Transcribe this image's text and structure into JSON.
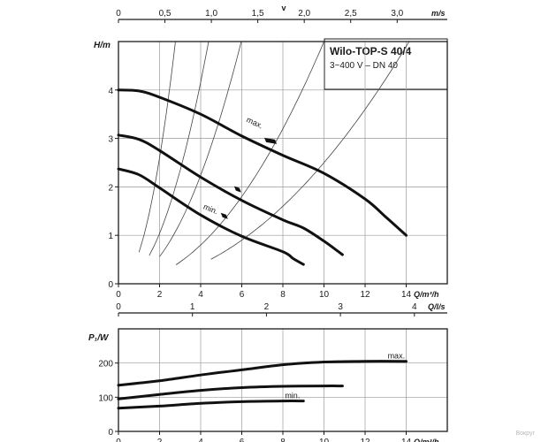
{
  "header": {
    "title": "Wilo-TOP-S 40/4",
    "subtitle": "3~400 V – DN 40"
  },
  "watermark": "Вокруг",
  "chart_data": [
    {
      "type": "line",
      "id": "head",
      "ylabel": "H/m",
      "xlabel": "Q/m³/h",
      "xlim": [
        0,
        16
      ],
      "ylim": [
        0,
        5
      ],
      "x_ticks": [
        0,
        2,
        4,
        6,
        8,
        10,
        12,
        14
      ],
      "y_ticks": [
        0,
        1,
        2,
        3,
        4
      ],
      "grid": true,
      "top_axis": {
        "unit_label": "m/s",
        "title": "v",
        "ticks": [
          {
            "v": 0,
            "label": "0"
          },
          {
            "v": 0.5,
            "label": "0,5"
          },
          {
            "v": 1.0,
            "label": "1,0"
          },
          {
            "v": 1.5,
            "label": "1,5"
          },
          {
            "v": 2.0,
            "label": "2,0"
          },
          {
            "v": 2.5,
            "label": "2,5"
          },
          {
            "v": 3.0,
            "label": "3,0"
          }
        ],
        "q_per_v": 4.52
      },
      "series": [
        {
          "name": "max.",
          "points": [
            [
              0,
              4
            ],
            [
              1,
              3.98
            ],
            [
              2,
              3.85
            ],
            [
              4,
              3.5
            ],
            [
              6,
              3.05
            ],
            [
              8,
              2.65
            ],
            [
              10,
              2.28
            ],
            [
              12,
              1.75
            ],
            [
              13,
              1.38
            ],
            [
              14,
              1.0
            ]
          ]
        },
        {
          "points": [
            [
              0,
              3.07
            ],
            [
              1,
              2.98
            ],
            [
              2,
              2.75
            ],
            [
              4,
              2.2
            ],
            [
              6,
              1.72
            ],
            [
              8,
              1.32
            ],
            [
              9,
              1.15
            ],
            [
              10,
              0.88
            ],
            [
              10.9,
              0.6
            ]
          ]
        },
        {
          "name": "min.",
          "points": [
            [
              0,
              2.37
            ],
            [
              1,
              2.25
            ],
            [
              2,
              1.98
            ],
            [
              4,
              1.42
            ],
            [
              6,
              0.98
            ],
            [
              8,
              0.66
            ],
            [
              8.5,
              0.52
            ],
            [
              9,
              0.4
            ]
          ]
        }
      ],
      "labels": [
        {
          "text": "max.",
          "x": 6.2,
          "y": 3.35
        },
        {
          "text": "min.",
          "x": 4.1,
          "y": 1.55
        }
      ],
      "pipe_curves": [
        {
          "xs": [
            1,
            6.3
          ],
          "yk": 0.65
        },
        {
          "xs": [
            1.5,
            9.6
          ],
          "yk": 0.26
        },
        {
          "xs": [
            2,
            11.8
          ],
          "yk": 0.14
        },
        {
          "xs": [
            2.8,
            16
          ],
          "yk": 0.05
        },
        {
          "xs": [
            4.5,
            16
          ],
          "yk": 0.025
        }
      ],
      "markers": [
        {
          "x": 7.4,
          "y": 2.95
        },
        {
          "x": 5.8,
          "y": 1.95
        },
        {
          "x": 5.15,
          "y": 1.4
        }
      ]
    },
    {
      "type": "line",
      "id": "power",
      "ylabel": "P₁/W",
      "xlabel": "Q/m³/h",
      "xlim": [
        0,
        16
      ],
      "ylim": [
        0,
        300
      ],
      "x_ticks": [
        0,
        2,
        4,
        6,
        8,
        10,
        12,
        14
      ],
      "y_ticks": [
        0,
        100,
        200
      ],
      "grid": true,
      "top_axis": {
        "unit_label": "Q/l/s",
        "ticks": [
          {
            "v": 0,
            "label": "0"
          },
          {
            "v": 1,
            "label": "1"
          },
          {
            "v": 2,
            "label": "2"
          },
          {
            "v": 3,
            "label": "3"
          },
          {
            "v": 4,
            "label": "4"
          }
        ],
        "q_per_v": 3.6
      },
      "series": [
        {
          "name": "max.",
          "points": [
            [
              0,
              135
            ],
            [
              2,
              148
            ],
            [
              4,
              165
            ],
            [
              6,
              180
            ],
            [
              8,
              195
            ],
            [
              10,
              203
            ],
            [
              12,
              205
            ],
            [
              14,
              205
            ]
          ]
        },
        {
          "points": [
            [
              0,
              95
            ],
            [
              2,
              108
            ],
            [
              4,
              120
            ],
            [
              6,
              128
            ],
            [
              8,
              132
            ],
            [
              10,
              133
            ],
            [
              10.9,
              133
            ]
          ]
        },
        {
          "name": "min.",
          "points": [
            [
              0,
              68
            ],
            [
              2,
              74
            ],
            [
              4,
              82
            ],
            [
              6,
              87
            ],
            [
              8,
              89
            ],
            [
              9,
              89
            ]
          ]
        }
      ],
      "labels": [
        {
          "text": "max.",
          "x": 13.1,
          "y": 213
        },
        {
          "text": "min.",
          "x": 8.1,
          "y": 97
        }
      ]
    }
  ]
}
